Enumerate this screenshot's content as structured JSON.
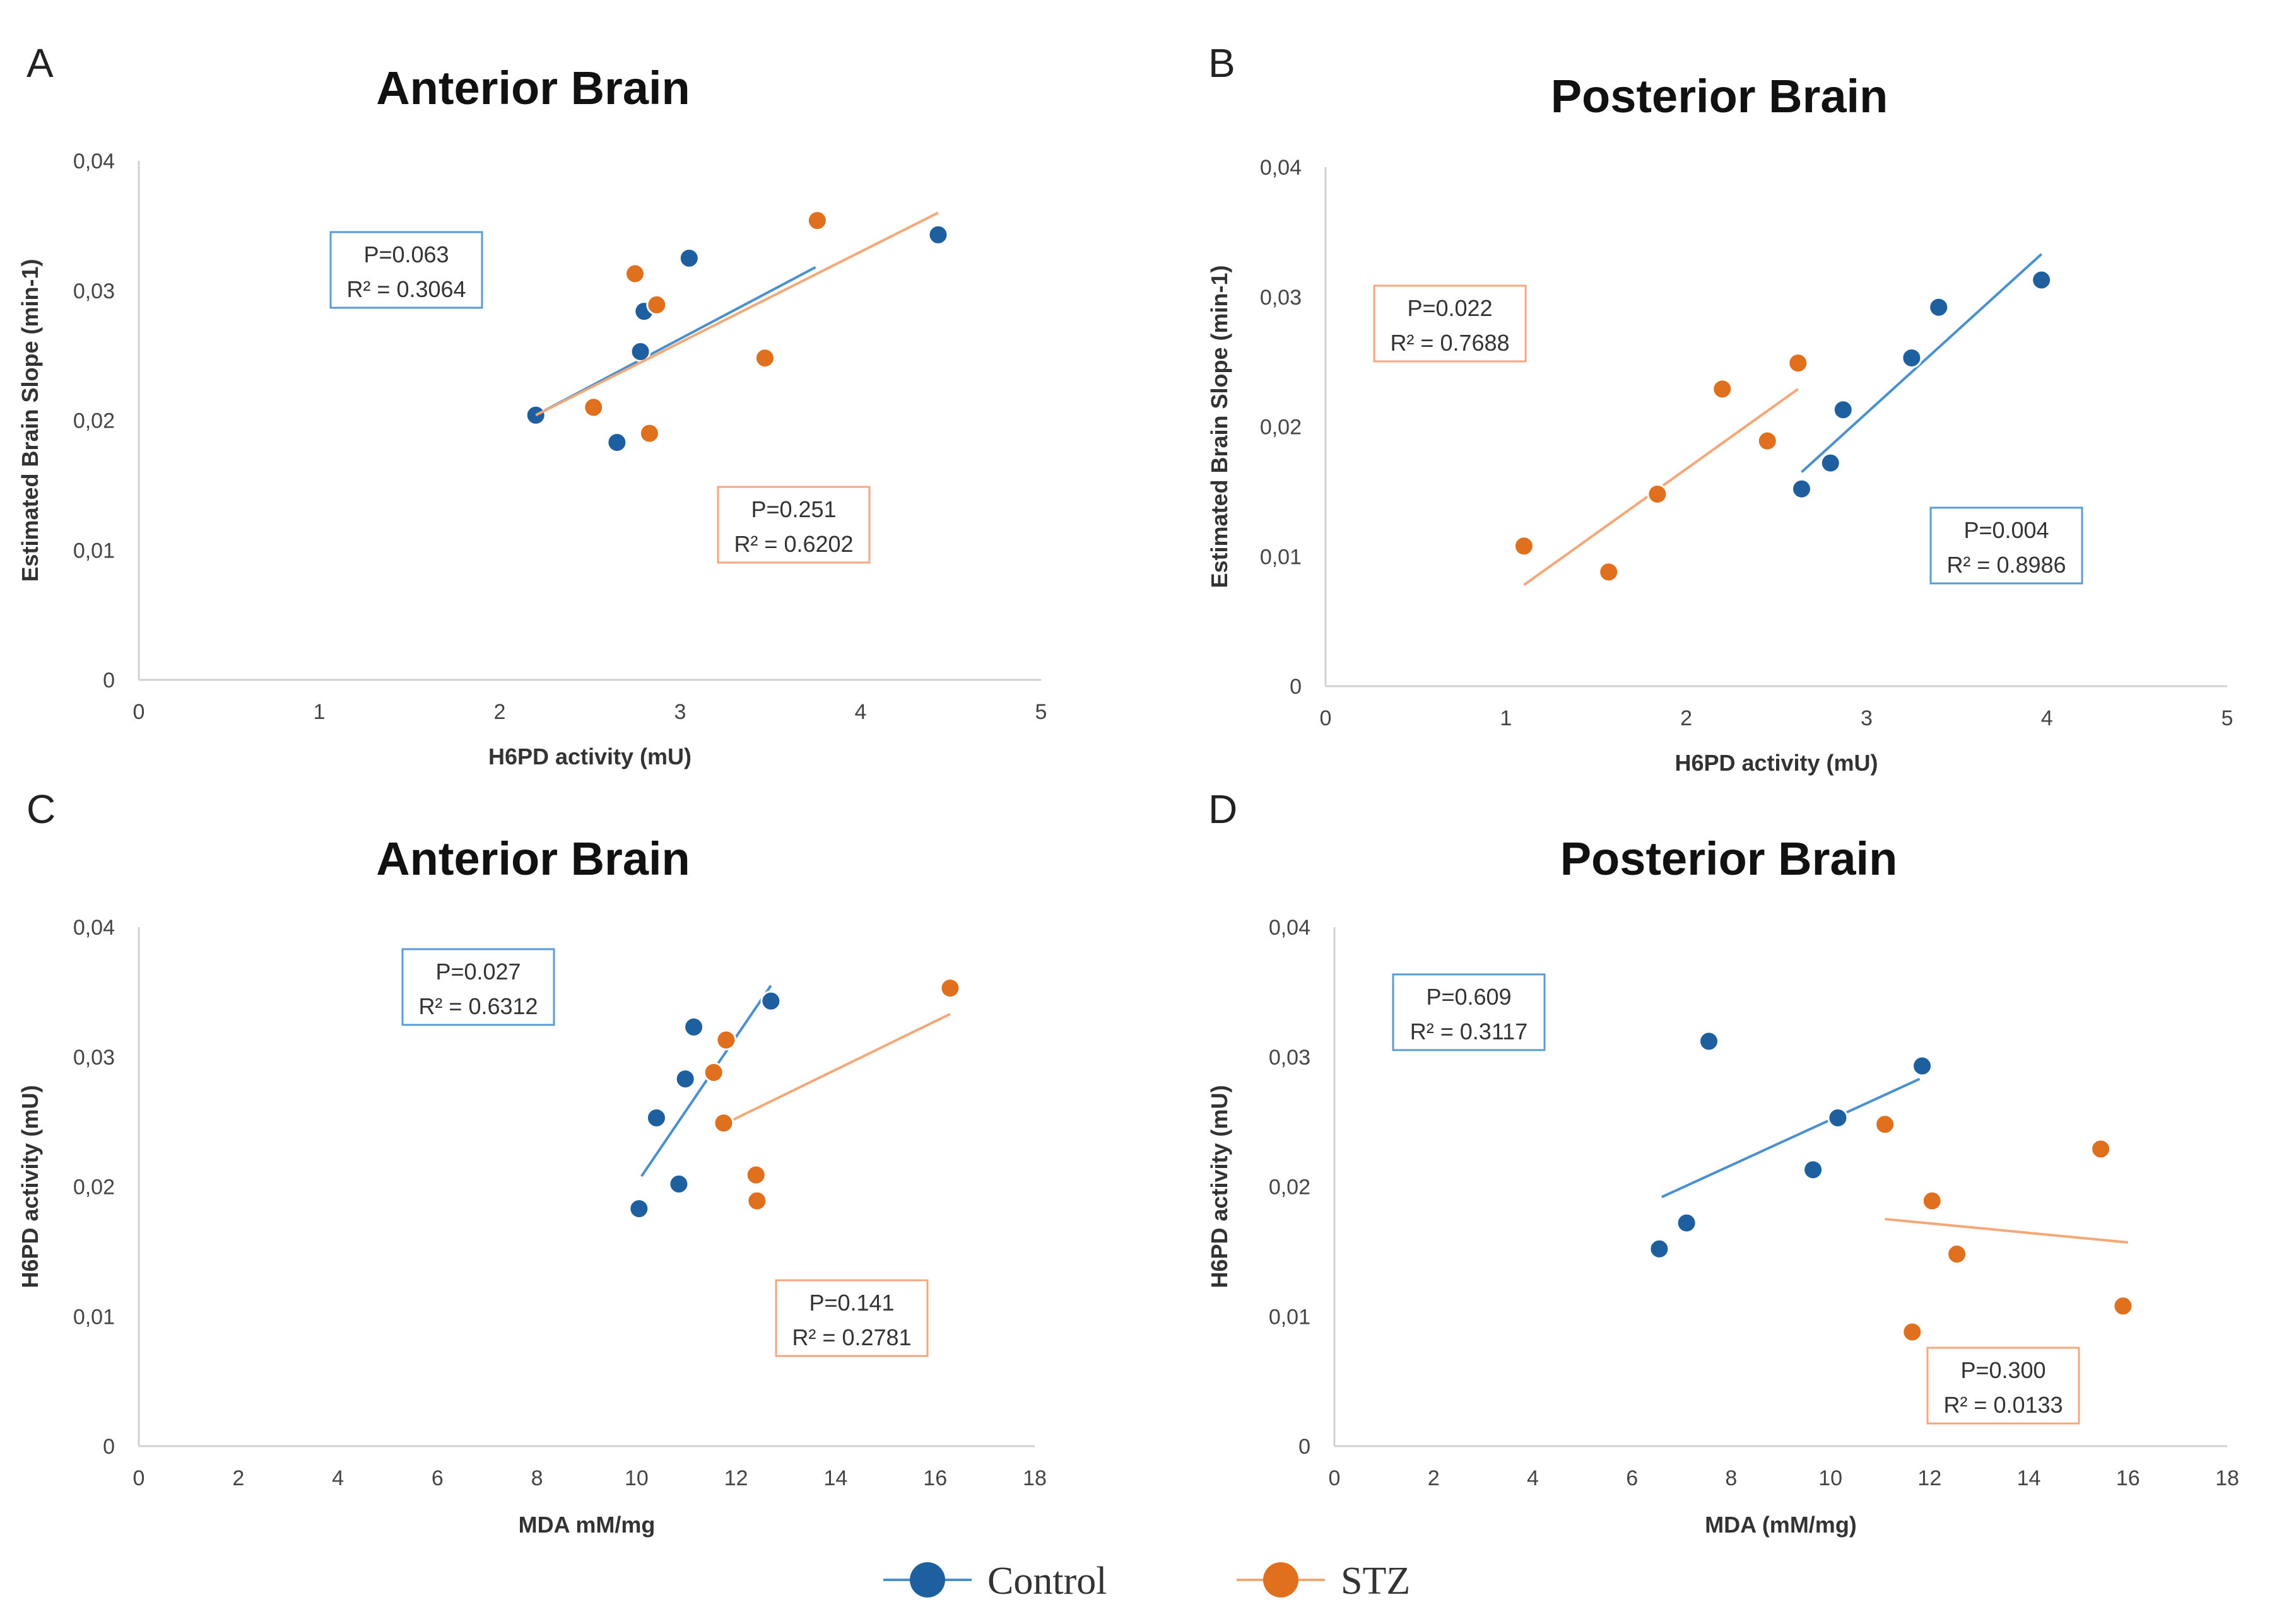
{
  "colors": {
    "control": "#1e5fa0",
    "control_line": "#4a90d0",
    "stz": "#e0701e",
    "stz_line": "#f4a878",
    "control_box": "#5b9bd5",
    "stz_box": "#f4a67c"
  },
  "legend": [
    {
      "label": "Control",
      "series": "control"
    },
    {
      "label": "STZ",
      "series": "stz"
    }
  ],
  "chart_data": [
    {
      "panel": "A",
      "type": "scatter",
      "title": "Anterior Brain",
      "xlabel": "H6PD activity (mU)",
      "ylabel": "Estimated Brain Slope (min-1)",
      "xlim": [
        0,
        5
      ],
      "ylim": [
        0,
        0.04
      ],
      "xticks": [
        "0",
        "1",
        "2",
        "3",
        "4",
        "5"
      ],
      "yticks": [
        "0",
        "0,01",
        "0,02",
        "0,03",
        "0,04"
      ],
      "series": [
        {
          "name": "Control",
          "key": "control",
          "points": [
            [
              2.2,
              0.0204
            ],
            [
              2.65,
              0.0183
            ],
            [
              2.78,
              0.0253
            ],
            [
              2.8,
              0.0284
            ],
            [
              3.05,
              0.0325
            ],
            [
              4.43,
              0.0343
            ]
          ],
          "trend": [
            [
              2.2,
              0.0204
            ],
            [
              3.75,
              0.0318
            ]
          ],
          "stats": {
            "p": "P=0.063",
            "r2": "R² = 0.3064"
          },
          "stats_box": "left-upper"
        },
        {
          "name": "STZ",
          "key": "stz",
          "points": [
            [
              2.52,
              0.021
            ],
            [
              2.75,
              0.0313
            ],
            [
              2.83,
              0.019
            ],
            [
              2.87,
              0.0289
            ],
            [
              3.47,
              0.0248
            ],
            [
              3.76,
              0.0354
            ]
          ],
          "trend": [
            [
              2.2,
              0.0204
            ],
            [
              4.43,
              0.036
            ]
          ],
          "stats": {
            "p": "P=0.251",
            "r2": "R² = 0.6202"
          },
          "stats_box": "right-lower"
        }
      ]
    },
    {
      "panel": "B",
      "type": "scatter",
      "title": "Posterior Brain",
      "xlabel": "H6PD activity (mU)",
      "ylabel": "Estimated Brain Slope (min-1)",
      "xlim": [
        0,
        5
      ],
      "ylim": [
        0,
        0.04
      ],
      "xticks": [
        "0",
        "1",
        "2",
        "3",
        "4",
        "5"
      ],
      "yticks": [
        "0",
        "0,01",
        "0,02",
        "0,03",
        "0,04"
      ],
      "series": [
        {
          "name": "STZ",
          "key": "stz",
          "points": [
            [
              1.1,
              0.0108
            ],
            [
              1.57,
              0.0088
            ],
            [
              1.84,
              0.0148
            ],
            [
              2.2,
              0.0229
            ],
            [
              2.45,
              0.0189
            ],
            [
              2.62,
              0.0249
            ]
          ],
          "trend": [
            [
              1.1,
              0.0078
            ],
            [
              2.62,
              0.0229
            ]
          ],
          "stats": {
            "p": "P=0.022",
            "r2": "R² = 0.7688"
          },
          "stats_box": "left-upper"
        },
        {
          "name": "Control",
          "key": "control",
          "points": [
            [
              2.64,
              0.0152
            ],
            [
              2.8,
              0.0172
            ],
            [
              2.87,
              0.0213
            ],
            [
              3.25,
              0.0253
            ],
            [
              3.4,
              0.0292
            ],
            [
              3.97,
              0.0313
            ]
          ],
          "trend": [
            [
              2.64,
              0.0165
            ],
            [
              3.97,
              0.0333
            ]
          ],
          "stats": {
            "p": "P=0.004",
            "r2": "R² = 0.8986"
          },
          "stats_box": "right-lower"
        }
      ]
    },
    {
      "panel": "C",
      "type": "scatter",
      "title": "Anterior Brain",
      "xlabel": "MDA mM/mg",
      "ylabel": "H6PD activity (mU)",
      "xlim": [
        0,
        18
      ],
      "ylim": [
        0,
        0.04
      ],
      "xticks": [
        "0",
        "2",
        "4",
        "6",
        "8",
        "10",
        "12",
        "14",
        "16",
        "18"
      ],
      "yticks": [
        "0",
        "0,01",
        "0,02",
        "0,03",
        "0,04"
      ],
      "series": [
        {
          "name": "Control",
          "key": "control",
          "points": [
            [
              10.05,
              0.0183
            ],
            [
              10.4,
              0.0253
            ],
            [
              10.85,
              0.0202
            ],
            [
              10.98,
              0.0283
            ],
            [
              11.15,
              0.0323
            ],
            [
              12.7,
              0.0343
            ]
          ],
          "trend": [
            [
              10.1,
              0.0208
            ],
            [
              12.7,
              0.0355
            ]
          ],
          "stats": {
            "p": "P=0.027",
            "r2": "R² = 0.6312"
          },
          "stats_box": "left-upper"
        },
        {
          "name": "STZ",
          "key": "stz",
          "points": [
            [
              11.55,
              0.0288
            ],
            [
              11.75,
              0.0249
            ],
            [
              11.8,
              0.0313
            ],
            [
              12.4,
              0.0209
            ],
            [
              12.42,
              0.0189
            ],
            [
              16.3,
              0.0353
            ]
          ],
          "trend": [
            [
              11.75,
              0.0248
            ],
            [
              16.3,
              0.0333
            ]
          ],
          "stats": {
            "p": "P=0.141",
            "r2": "R² = 0.2781"
          },
          "stats_box": "right-lower"
        }
      ]
    },
    {
      "panel": "D",
      "type": "scatter",
      "title": "Posterior Brain",
      "xlabel": "MDA (mM/mg)",
      "ylabel": "H6PD activity (mU)",
      "xlim": [
        0,
        18
      ],
      "ylim": [
        0,
        0.04
      ],
      "xticks": [
        "0",
        "2",
        "4",
        "6",
        "8",
        "10",
        "12",
        "14",
        "16",
        "18"
      ],
      "yticks": [
        "0",
        "0,01",
        "0,02",
        "0,03",
        "0,04"
      ],
      "series": [
        {
          "name": "Control",
          "key": "control",
          "points": [
            [
              6.55,
              0.0152
            ],
            [
              7.1,
              0.0172
            ],
            [
              7.55,
              0.0312
            ],
            [
              9.65,
              0.0213
            ],
            [
              10.15,
              0.0253
            ],
            [
              11.85,
              0.0293
            ]
          ],
          "trend": [
            [
              6.6,
              0.0192
            ],
            [
              11.8,
              0.0283
            ]
          ],
          "stats": {
            "p": "P=0.609",
            "r2": "R² = 0.3117"
          },
          "stats_box": "left-upper"
        },
        {
          "name": "STZ",
          "key": "stz",
          "points": [
            [
              11.1,
              0.0248
            ],
            [
              11.65,
              0.0088
            ],
            [
              12.05,
              0.0189
            ],
            [
              12.55,
              0.0148
            ],
            [
              15.45,
              0.0229
            ],
            [
              15.9,
              0.0108
            ]
          ],
          "trend": [
            [
              11.1,
              0.0175
            ],
            [
              16.0,
              0.0157
            ]
          ],
          "stats": {
            "p": "P=0.300",
            "r2": "R² = 0.0133"
          },
          "stats_box": "right-lower"
        }
      ]
    }
  ]
}
